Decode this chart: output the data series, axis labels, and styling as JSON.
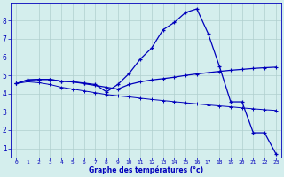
{
  "xlabel": "Graphe des températures (°c)",
  "background_color": "#d4eeed",
  "grid_color": "#b0cfce",
  "line_color": "#0000bb",
  "xlim": [
    -0.5,
    23.5
  ],
  "ylim": [
    0.5,
    9.0
  ],
  "xticks": [
    0,
    1,
    2,
    3,
    4,
    5,
    6,
    7,
    8,
    9,
    10,
    11,
    12,
    13,
    14,
    15,
    16,
    17,
    18,
    19,
    20,
    21,
    22,
    23
  ],
  "yticks": [
    1,
    2,
    3,
    4,
    5,
    6,
    7,
    8
  ],
  "line1_x": [
    0,
    1,
    2,
    3,
    4,
    5,
    6,
    7,
    8,
    9,
    10,
    11,
    12,
    13,
    14,
    15,
    16,
    17,
    18,
    19,
    20,
    21,
    22,
    23
  ],
  "line1_y": [
    4.55,
    4.75,
    4.78,
    4.78,
    4.68,
    4.65,
    4.58,
    4.5,
    4.1,
    4.5,
    5.1,
    5.9,
    6.5,
    7.5,
    7.9,
    8.45,
    8.65,
    7.3,
    5.5,
    3.55,
    3.55,
    1.85,
    1.85,
    0.7
  ],
  "line2_x": [
    0,
    1,
    2,
    3,
    4,
    5,
    6,
    7,
    8,
    9,
    10,
    11,
    12,
    13,
    14,
    15,
    16,
    17,
    18,
    19,
    20,
    21,
    22,
    23
  ],
  "line2_y": [
    4.55,
    4.75,
    4.78,
    4.78,
    4.68,
    4.65,
    4.55,
    4.45,
    4.35,
    4.25,
    4.5,
    4.65,
    4.75,
    4.82,
    4.9,
    5.0,
    5.08,
    5.15,
    5.22,
    5.28,
    5.33,
    5.38,
    5.42,
    5.45
  ],
  "line3_x": [
    0,
    1,
    2,
    3,
    4,
    5,
    6,
    7,
    8,
    9,
    10,
    11,
    12,
    13,
    14,
    15,
    16,
    17,
    18,
    19,
    20,
    21,
    22,
    23
  ],
  "line3_y": [
    4.55,
    4.65,
    4.6,
    4.5,
    4.35,
    4.25,
    4.15,
    4.05,
    3.95,
    3.88,
    3.82,
    3.75,
    3.68,
    3.62,
    3.56,
    3.5,
    3.44,
    3.38,
    3.33,
    3.28,
    3.22,
    3.17,
    3.12,
    3.08
  ]
}
